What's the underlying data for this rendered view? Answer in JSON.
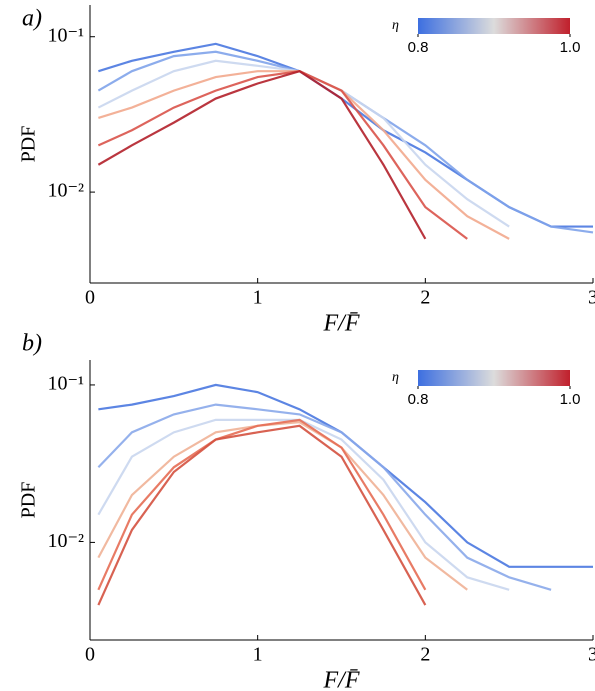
{
  "chart_data": [
    {
      "type": "line",
      "panel_label": "a)",
      "x_label": "F/F̄",
      "y_label": "PDF",
      "log_y": true,
      "x": [
        0.05,
        0.25,
        0.5,
        0.75,
        1,
        1.25,
        1.5,
        1.75,
        2,
        2.25,
        2.5,
        2.75,
        3
      ],
      "xlim": [
        0,
        3
      ],
      "xticks": [
        0,
        1,
        2,
        3
      ],
      "ylim": [
        0.0026,
        0.16
      ],
      "yticks": [
        {
          "value": 0.1,
          "label": "10⁻¹"
        },
        {
          "value": 0.01,
          "label": "10⁻²"
        }
      ],
      "series": [
        {
          "color": "#4a78e0",
          "values": [
            0.06,
            0.07,
            0.08,
            0.09,
            0.075,
            0.06,
            0.04,
            0.025,
            0.018,
            0.012,
            0.008,
            0.006,
            0.006
          ]
        },
        {
          "color": "#7fa3ea",
          "values": [
            0.045,
            0.06,
            0.075,
            0.08,
            0.07,
            0.06,
            0.045,
            0.03,
            0.02,
            0.012,
            0.008,
            0.006,
            0.0055
          ]
        },
        {
          "color": "#c9d6ee",
          "values": [
            0.035,
            0.045,
            0.06,
            0.07,
            0.065,
            0.06,
            0.045,
            0.03,
            0.015,
            0.009,
            0.006,
            null,
            null
          ]
        },
        {
          "color": "#f2a98d",
          "values": [
            0.03,
            0.035,
            0.045,
            0.055,
            0.06,
            0.06,
            0.045,
            0.025,
            0.012,
            0.007,
            0.005,
            null,
            null
          ]
        },
        {
          "color": "#d9534a",
          "values": [
            0.02,
            0.025,
            0.035,
            0.045,
            0.055,
            0.06,
            0.045,
            0.02,
            0.008,
            0.005,
            null,
            null,
            null
          ]
        },
        {
          "color": "#b3202a",
          "values": [
            0.015,
            0.02,
            0.028,
            0.04,
            0.05,
            0.06,
            0.04,
            0.015,
            0.005,
            null,
            null,
            null,
            null
          ]
        }
      ],
      "colorbar": {
        "label": "η",
        "range": [
          0.8,
          1
        ],
        "colors": [
          "#3d6fe0",
          "#dcdcdc",
          "#c0202c"
        ],
        "ticks": [
          0.8,
          {
            "value": 1,
            "label": "1.0"
          }
        ]
      }
    },
    {
      "type": "line",
      "panel_label": "b)",
      "x_label": "F/F̄",
      "y_label": "PDF",
      "log_y": true,
      "x": [
        0.05,
        0.25,
        0.5,
        0.75,
        1,
        1.25,
        1.5,
        1.75,
        2,
        2.25,
        2.5,
        2.75,
        3
      ],
      "xlim": [
        0,
        3
      ],
      "xticks": [
        0,
        1,
        2,
        3
      ],
      "ylim": [
        0.0024,
        0.144
      ],
      "yticks": [
        {
          "value": 0.1,
          "label": "10⁻¹"
        },
        {
          "value": 0.01,
          "label": "10⁻²"
        }
      ],
      "series": [
        {
          "color": "#4a78e0",
          "values": [
            0.07,
            0.075,
            0.085,
            0.1,
            0.09,
            0.07,
            0.05,
            0.03,
            0.018,
            0.01,
            0.007,
            0.007,
            0.007
          ]
        },
        {
          "color": "#8aa9ea",
          "values": [
            0.03,
            0.05,
            0.065,
            0.075,
            0.07,
            0.065,
            0.05,
            0.03,
            0.015,
            0.008,
            0.006,
            0.005,
            null
          ]
        },
        {
          "color": "#c9d6ee",
          "values": [
            0.015,
            0.035,
            0.05,
            0.06,
            0.06,
            0.06,
            0.045,
            0.025,
            0.01,
            0.006,
            0.005,
            null,
            null
          ]
        },
        {
          "color": "#f0b196",
          "values": [
            0.008,
            0.02,
            0.035,
            0.05,
            0.055,
            0.058,
            0.04,
            0.02,
            0.008,
            0.005,
            null,
            null,
            null
          ]
        },
        {
          "color": "#e56d54",
          "values": [
            0.005,
            0.015,
            0.03,
            0.045,
            0.055,
            0.06,
            0.04,
            0.015,
            0.005,
            null,
            null,
            null,
            null
          ]
        },
        {
          "color": "#d4513f",
          "values": [
            0.004,
            0.012,
            0.028,
            0.045,
            0.05,
            0.055,
            0.035,
            0.012,
            0.004,
            null,
            null,
            null,
            null
          ]
        }
      ],
      "colorbar": {
        "label": "η",
        "range": [
          0.8,
          1
        ],
        "colors": [
          "#3d6fe0",
          "#dcdcdc",
          "#c0202c"
        ],
        "ticks": [
          0.8,
          {
            "value": 1,
            "label": "1.0"
          }
        ]
      }
    }
  ]
}
